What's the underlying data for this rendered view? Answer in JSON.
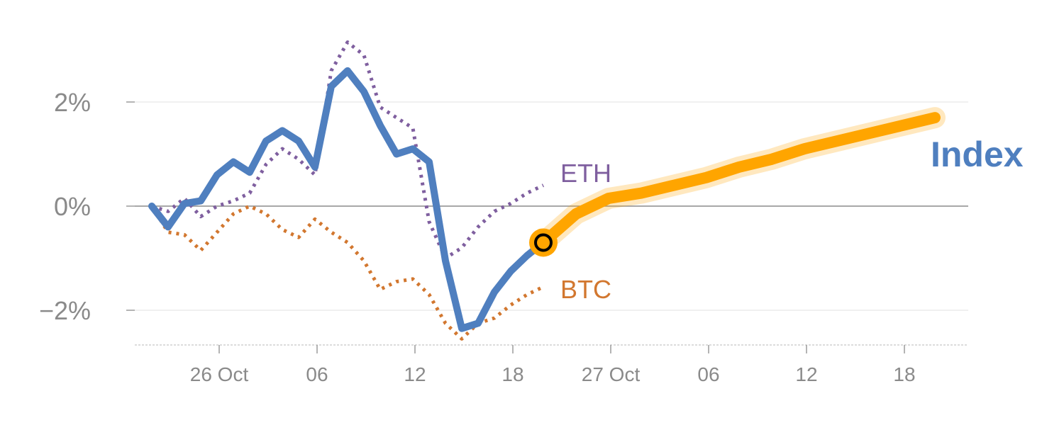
{
  "chart_data": {
    "type": "line",
    "title": "",
    "xlabel": "",
    "ylabel": "",
    "ylim": [
      -2.65,
      3.3
    ],
    "grid": true,
    "y_ticks": [
      {
        "value": 2,
        "label": "2%"
      },
      {
        "value": 0,
        "label": "0%"
      },
      {
        "value": -2,
        "label": "−2%"
      }
    ],
    "x_ticks": [
      {
        "x": 4,
        "label": "26 Oct"
      },
      {
        "x": 10,
        "label": "06"
      },
      {
        "x": 16,
        "label": "12"
      },
      {
        "x": 22,
        "label": "18"
      },
      {
        "x": 28,
        "label": "27 Oct"
      },
      {
        "x": 34,
        "label": "06"
      },
      {
        "x": 40,
        "label": "12"
      },
      {
        "x": 46,
        "label": "18"
      }
    ],
    "xlim": [
      -1,
      50
    ],
    "series": [
      {
        "name": "ETH",
        "color": "#7f5f9f",
        "style": "dotted",
        "x": [
          0,
          1,
          2,
          3,
          4,
          5,
          6,
          7,
          8,
          9,
          10,
          11,
          12,
          13,
          14,
          15,
          16,
          17,
          18,
          19,
          20,
          21,
          22,
          23,
          24
        ],
        "values": [
          0.0,
          -0.1,
          0.15,
          -0.2,
          0.0,
          0.1,
          0.25,
          0.8,
          1.1,
          0.9,
          0.6,
          2.6,
          3.15,
          2.9,
          1.9,
          1.7,
          1.5,
          -0.3,
          -1.0,
          -0.8,
          -0.4,
          -0.1,
          0.05,
          0.25,
          0.4
        ]
      },
      {
        "name": "BTC",
        "color": "#d2772f",
        "style": "dotted",
        "x": [
          0,
          1,
          2,
          3,
          4,
          5,
          6,
          7,
          8,
          9,
          10,
          11,
          12,
          13,
          14,
          15,
          16,
          17,
          18,
          19,
          20,
          21,
          22,
          23,
          24
        ],
        "values": [
          0.0,
          -0.5,
          -0.55,
          -0.85,
          -0.5,
          -0.15,
          0.0,
          -0.15,
          -0.45,
          -0.6,
          -0.25,
          -0.5,
          -0.7,
          -1.05,
          -1.6,
          -1.45,
          -1.4,
          -1.7,
          -2.25,
          -2.55,
          -2.25,
          -2.15,
          -1.9,
          -1.7,
          -1.55
        ]
      },
      {
        "name": "Index",
        "color": "#4f7fbf",
        "style": "solid",
        "x": [
          0,
          1,
          2,
          3,
          4,
          5,
          6,
          7,
          8,
          9,
          10,
          11,
          12,
          13,
          14,
          15,
          16,
          17,
          18,
          19,
          20,
          21,
          22,
          23,
          24
        ],
        "values": [
          0.0,
          -0.4,
          0.05,
          0.1,
          0.6,
          0.85,
          0.65,
          1.25,
          1.45,
          1.25,
          0.75,
          2.3,
          2.6,
          2.2,
          1.55,
          1.0,
          1.1,
          0.85,
          -1.05,
          -2.35,
          -2.25,
          -1.65,
          -1.25,
          -0.95,
          -0.7
        ]
      },
      {
        "name": "",
        "color": "#ffa500",
        "style": "projection",
        "x": [
          24,
          26,
          28,
          30,
          32,
          34,
          36,
          38,
          40,
          42,
          44,
          46,
          48
        ],
        "values": [
          -0.7,
          -0.15,
          0.15,
          0.25,
          0.4,
          0.55,
          0.75,
          0.9,
          1.1,
          1.25,
          1.4,
          1.55,
          1.7
        ]
      }
    ],
    "marker": {
      "x": 24,
      "value": -0.7,
      "fill": "#ffa500",
      "stroke": "#000000"
    },
    "labels": [
      {
        "text": "ETH",
        "color": "#7f5f9f"
      },
      {
        "text": "BTC",
        "color": "#d2772f"
      },
      {
        "text": "Index",
        "color": "#4f7fbf"
      }
    ]
  }
}
